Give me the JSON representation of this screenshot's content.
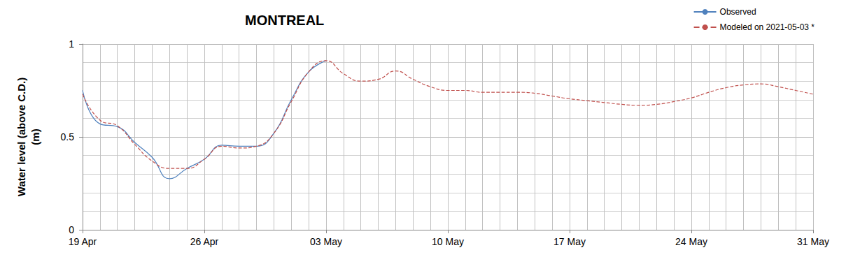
{
  "chart_data": {
    "type": "line",
    "title": "MONTREAL",
    "y_label": "Water level (above C.D.)\n(m)",
    "categories": [
      "19 Apr",
      null,
      null,
      null,
      null,
      null,
      null,
      "26 Apr",
      null,
      null,
      null,
      null,
      null,
      null,
      "03 May",
      null,
      null,
      null,
      null,
      null,
      null,
      "10 May",
      null,
      null,
      null,
      null,
      null,
      null,
      "17 May",
      null,
      null,
      null,
      null,
      null,
      null,
      "24 May",
      null,
      null,
      null,
      null,
      null,
      null,
      "31 May"
    ],
    "series": [
      {
        "name": "Observed",
        "color": "#4f81bd",
        "line_style": "solid",
        "marker": "none",
        "values": [
          0.75,
          0.57,
          0.555,
          0.47,
          0.39,
          0.275,
          0.33,
          0.38,
          0.455,
          0.45,
          0.45,
          0.52,
          0.7,
          0.85,
          0.91,
          null,
          null,
          null,
          null,
          null,
          null,
          null,
          null,
          null,
          null,
          null,
          null,
          null,
          null,
          null,
          null,
          null,
          null,
          null,
          null,
          null,
          null,
          null,
          null,
          null,
          null,
          null,
          null
        ]
      },
      {
        "name": "Modeled on 2021-05-03 *",
        "color": "#c0504d",
        "line_style": "dashed",
        "marker": "none",
        "values": [
          0.73,
          0.59,
          0.56,
          0.46,
          0.37,
          0.33,
          0.33,
          0.38,
          0.45,
          0.44,
          0.45,
          0.52,
          0.69,
          0.85,
          0.91,
          0.84,
          0.8,
          0.81,
          0.855,
          0.81,
          0.77,
          0.75,
          0.75,
          0.74,
          0.74,
          0.74,
          0.735,
          0.72,
          0.705,
          0.695,
          0.685,
          0.675,
          0.67,
          0.675,
          0.69,
          0.71,
          0.74,
          0.765,
          0.78,
          0.785,
          0.77,
          0.75,
          0.73
        ]
      }
    ],
    "ylim": [
      0,
      1
    ],
    "yticks": [
      0,
      0.5,
      1
    ],
    "grid": true,
    "legend": "top-right"
  }
}
